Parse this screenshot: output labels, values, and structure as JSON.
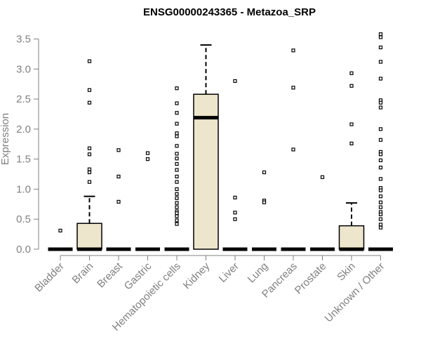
{
  "chart_data": {
    "type": "boxplot",
    "title": "ENSG00000243365 - Metazoa_SRP",
    "xlabel": "",
    "ylabel": "Expression",
    "ylim": [
      0,
      3.6
    ],
    "yticks": [
      0.0,
      0.5,
      1.0,
      1.5,
      2.0,
      2.5,
      3.0,
      3.5
    ],
    "ytick_labels": [
      "0.0",
      "0.5",
      "1.0",
      "1.5",
      "2.0",
      "2.5",
      "3.0",
      "3.5"
    ],
    "colors": {
      "box_fill": "#ede6cc",
      "box_stroke": "#000000",
      "axis": "#808080",
      "text": "#808080",
      "title": "#000000"
    },
    "categories": [
      "Bladder",
      "Brain",
      "Breast",
      "Gastric",
      "Hematopoietic cells",
      "Kidney",
      "Liver",
      "Lung",
      "Pancreas",
      "Prostate",
      "Skin",
      "Unknown / Other"
    ],
    "boxes": [
      {
        "category": "Bladder",
        "q1": 0,
        "median": 0,
        "q3": 0,
        "whisker_low": 0,
        "whisker_high": 0,
        "outliers": [
          0.31
        ]
      },
      {
        "category": "Brain",
        "q1": 0,
        "median": 0,
        "q3": 0.43,
        "whisker_low": 0,
        "whisker_high": 0.88,
        "outliers": [
          3.13,
          2.65,
          2.44,
          1.68,
          1.58,
          1.33,
          1.28,
          1.12
        ]
      },
      {
        "category": "Breast",
        "q1": 0,
        "median": 0,
        "q3": 0,
        "whisker_low": 0,
        "whisker_high": 0,
        "outliers": [
          1.65,
          1.21,
          0.79
        ]
      },
      {
        "category": "Gastric",
        "q1": 0,
        "median": 0,
        "q3": 0,
        "whisker_low": 0,
        "whisker_high": 0,
        "outliers": [
          1.6,
          1.5
        ]
      },
      {
        "category": "Hematopoietic cells",
        "q1": 0,
        "median": 0,
        "q3": 0,
        "whisker_low": 0,
        "whisker_high": 0,
        "outliers": [
          2.68,
          2.43,
          2.27,
          2.09,
          1.93,
          1.88,
          1.72,
          1.59,
          1.51,
          1.42,
          1.32,
          1.21,
          1.12,
          1.0,
          0.92,
          0.85,
          0.77,
          0.7,
          0.63,
          0.6,
          0.55,
          0.48,
          0.42
        ]
      },
      {
        "category": "Kidney",
        "q1": 0,
        "median": 2.19,
        "q3": 2.58,
        "whisker_low": 0,
        "whisker_high": 3.4,
        "outliers": []
      },
      {
        "category": "Liver",
        "q1": 0,
        "median": 0,
        "q3": 0,
        "whisker_low": 0,
        "whisker_high": 0,
        "outliers": [
          2.8,
          0.86,
          0.61,
          0.5
        ]
      },
      {
        "category": "Lung",
        "q1": 0,
        "median": 0,
        "q3": 0,
        "whisker_low": 0,
        "whisker_high": 0,
        "outliers": [
          1.28,
          0.81,
          0.78
        ]
      },
      {
        "category": "Pancreas",
        "q1": 0,
        "median": 0,
        "q3": 0,
        "whisker_low": 0,
        "whisker_high": 0,
        "outliers": [
          3.31,
          2.69,
          1.66
        ]
      },
      {
        "category": "Prostate",
        "q1": 0,
        "median": 0,
        "q3": 0,
        "whisker_low": 0,
        "whisker_high": 0,
        "outliers": [
          1.2
        ]
      },
      {
        "category": "Skin",
        "q1": 0,
        "median": 0,
        "q3": 0.39,
        "whisker_low": 0,
        "whisker_high": 0.77,
        "outliers": [
          2.93,
          2.72,
          2.08,
          1.76
        ]
      },
      {
        "category": "Unknown / Other",
        "q1": 0,
        "median": 0,
        "q3": 0,
        "whisker_low": 0,
        "whisker_high": 0,
        "outliers": [
          3.58,
          3.53,
          3.36,
          3.12,
          2.84,
          2.48,
          2.44,
          2.36,
          2.0,
          1.82,
          1.62,
          1.58,
          1.48,
          1.36,
          1.17,
          1.02,
          0.98,
          0.88,
          0.78,
          0.7,
          0.62,
          0.58,
          0.5,
          0.41,
          0.36
        ]
      }
    ]
  }
}
